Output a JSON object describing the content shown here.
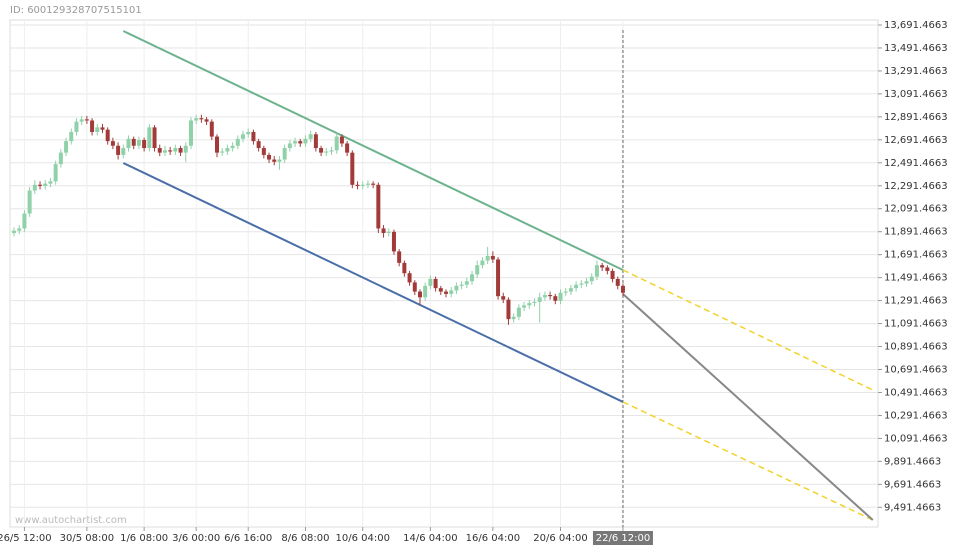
{
  "id_text": "ID: 600129328707515101",
  "watermark": "www.autochartist.com",
  "chart_data": {
    "type": "candlestick",
    "categories": [
      null,
      null,
      "26/5 12:00",
      null,
      null,
      null,
      null,
      null,
      null,
      null,
      null,
      null,
      null,
      null,
      "30/5 08:00",
      null,
      null,
      null,
      null,
      null,
      null,
      null,
      null,
      null,
      null,
      "1/6 08:00",
      null,
      null,
      null,
      null,
      null,
      null,
      null,
      null,
      null,
      "3/6 00:00",
      null,
      null,
      null,
      null,
      null,
      null,
      null,
      null,
      null,
      "6/6 16:00",
      null,
      null,
      null,
      null,
      null,
      null,
      null,
      null,
      null,
      null,
      "8/6 08:00",
      null,
      null,
      null,
      null,
      null,
      null,
      null,
      null,
      null,
      null,
      "10/6 04:00",
      null,
      null,
      null,
      null,
      null,
      null,
      null,
      null,
      null,
      null,
      null,
      null,
      "14/6 04:00",
      null,
      null,
      null,
      null,
      null,
      null,
      null,
      null,
      null,
      null,
      null,
      "16/6 04:00",
      null,
      null,
      null,
      null,
      null,
      null,
      null,
      null,
      null,
      null,
      null,
      null,
      "20/6 04:00",
      null,
      null,
      null,
      null,
      null,
      null,
      null,
      null,
      null,
      null,
      null,
      "22/6 12:00"
    ],
    "open": [
      11880,
      11900,
      11920,
      12050,
      12250,
      12300,
      12290,
      12310,
      12330,
      12480,
      12580,
      12680,
      12760,
      12850,
      12870,
      12860,
      12760,
      12800,
      12780,
      12680,
      12640,
      12560,
      12620,
      12700,
      12640,
      12690,
      12620,
      12800,
      12620,
      12580,
      12600,
      12590,
      12620,
      12580,
      12640,
      12860,
      12880,
      12870,
      12850,
      12720,
      12580,
      12590,
      12620,
      12640,
      12700,
      12740,
      12760,
      12680,
      12620,
      12560,
      12520,
      12500,
      12520,
      12620,
      12660,
      12680,
      12660,
      12700,
      12740,
      12620,
      12580,
      12590,
      12600,
      12720,
      12660,
      12580,
      12300,
      12290,
      12300,
      12310,
      12300,
      11920,
      11880,
      11890,
      11720,
      11620,
      11530,
      11450,
      11370,
      11320,
      11420,
      11480,
      11400,
      11370,
      11350,
      11380,
      11420,
      11430,
      11460,
      11520,
      11600,
      11640,
      11680,
      11650,
      11330,
      11300,
      11130,
      11150,
      11230,
      11250,
      11270,
      11280,
      11320,
      11340,
      11330,
      11290,
      11360,
      11370,
      11400,
      11430,
      11440,
      11460,
      11500,
      11600,
      11580,
      11550,
      11480,
      11420
    ],
    "high": [
      11930,
      11950,
      12080,
      12280,
      12340,
      12330,
      12340,
      12360,
      12510,
      12610,
      12710,
      12790,
      12880,
      12900,
      12900,
      12880,
      12830,
      12830,
      12800,
      12710,
      12670,
      12650,
      12730,
      12720,
      12720,
      12710,
      12830,
      12820,
      12650,
      12640,
      12630,
      12650,
      12640,
      12670,
      12890,
      12910,
      12910,
      12890,
      12870,
      12740,
      12620,
      12650,
      12670,
      12730,
      12770,
      12790,
      12780,
      12700,
      12640,
      12580,
      12550,
      12550,
      12650,
      12690,
      12710,
      12700,
      12730,
      12770,
      12760,
      12640,
      12620,
      12630,
      12750,
      12740,
      12680,
      12600,
      12330,
      12330,
      12340,
      12330,
      12320,
      11950,
      11920,
      11910,
      11740,
      11640,
      11550,
      11470,
      11390,
      11450,
      11510,
      11500,
      11420,
      11390,
      11410,
      11450,
      11460,
      11490,
      11550,
      11640,
      11670,
      11760,
      11720,
      11670,
      11360,
      11320,
      11180,
      11260,
      11280,
      11300,
      11310,
      11360,
      11370,
      11370,
      11350,
      11390,
      11400,
      11430,
      11460,
      11470,
      11490,
      11530,
      11640,
      11620,
      11600,
      11570,
      11500,
      11440
    ],
    "low": [
      11850,
      11870,
      11890,
      12020,
      12220,
      12260,
      12260,
      12280,
      12300,
      12450,
      12550,
      12650,
      12730,
      12820,
      12830,
      12730,
      12730,
      12750,
      12650,
      12610,
      12520,
      12530,
      12590,
      12610,
      12610,
      12590,
      12590,
      12590,
      12550,
      12550,
      12560,
      12560,
      12550,
      12500,
      12610,
      12830,
      12840,
      12820,
      12690,
      12540,
      12550,
      12560,
      12590,
      12610,
      12670,
      12710,
      12650,
      12590,
      12530,
      12490,
      12470,
      12430,
      12490,
      12590,
      12630,
      12630,
      12630,
      12670,
      12590,
      12550,
      12550,
      12560,
      12570,
      12630,
      12550,
      12270,
      12260,
      12260,
      12270,
      12270,
      11880,
      11840,
      11850,
      11690,
      11590,
      11500,
      11420,
      11340,
      11250,
      11290,
      11390,
      11370,
      11340,
      11320,
      11320,
      11350,
      11390,
      11400,
      11430,
      11490,
      11570,
      11610,
      11620,
      11300,
      11270,
      11080,
      11100,
      11120,
      11200,
      11220,
      11240,
      11100,
      11290,
      11300,
      11260,
      11260,
      11330,
      11340,
      11370,
      11400,
      11410,
      11430,
      11470,
      11550,
      11520,
      11450,
      11390,
      11330
    ],
    "close": [
      11900,
      11920,
      12050,
      12250,
      12300,
      12290,
      12310,
      12330,
      12480,
      12580,
      12680,
      12760,
      12850,
      12870,
      12860,
      12760,
      12800,
      12780,
      12680,
      12640,
      12560,
      12620,
      12700,
      12640,
      12690,
      12620,
      12800,
      12620,
      12580,
      12600,
      12590,
      12620,
      12580,
      12640,
      12860,
      12880,
      12870,
      12850,
      12720,
      12580,
      12590,
      12620,
      12640,
      12700,
      12740,
      12760,
      12680,
      12620,
      12560,
      12520,
      12500,
      12520,
      12620,
      12660,
      12680,
      12660,
      12700,
      12740,
      12620,
      12580,
      12590,
      12600,
      12720,
      12660,
      12580,
      12300,
      12290,
      12300,
      12310,
      12300,
      11920,
      11880,
      11890,
      11720,
      11620,
      11530,
      11450,
      11370,
      11320,
      11420,
      11480,
      11400,
      11370,
      11350,
      11380,
      11420,
      11430,
      11460,
      11520,
      11600,
      11640,
      11680,
      11650,
      11330,
      11300,
      11130,
      11150,
      11230,
      11250,
      11270,
      11280,
      11320,
      11340,
      11330,
      11290,
      11360,
      11370,
      11400,
      11430,
      11440,
      11460,
      11500,
      11600,
      11580,
      11550,
      11480,
      11420,
      11360
    ],
    "up_color": "#8fd1a8",
    "down_color": "#a33a3a",
    "xlim": [
      -0.77,
      166
    ],
    "ylim": [
      9320,
      13735
    ],
    "yticks": [
      {
        "value": 9491.4663,
        "label": "9,491.4663"
      },
      {
        "value": 9691.4663,
        "label": "9,691.4663"
      },
      {
        "value": 9891.4663,
        "label": "9,891.4663"
      },
      {
        "value": 10091.4663,
        "label": "10,091.4663"
      },
      {
        "value": 10291.4663,
        "label": "10,291.4663"
      },
      {
        "value": 10491.4663,
        "label": "10,491.4663"
      },
      {
        "value": 10691.4663,
        "label": "10,691.4663"
      },
      {
        "value": 10891.4663,
        "label": "10,891.4663"
      },
      {
        "value": 11091.4663,
        "label": "11,091.4663"
      },
      {
        "value": 11291.4663,
        "label": "11,291.4663"
      },
      {
        "value": 11491.4663,
        "label": "11,491.4663"
      },
      {
        "value": 11691.4663,
        "label": "11,691.4663"
      },
      {
        "value": 11891.4663,
        "label": "11,891.4663"
      },
      {
        "value": 12091.4663,
        "label": "12,091.4663"
      },
      {
        "value": 12291.4663,
        "label": "12,291.4663"
      },
      {
        "value": 12491.4663,
        "label": "12,491.4663"
      },
      {
        "value": 12691.4663,
        "label": "12,691.4663"
      },
      {
        "value": 12891.4663,
        "label": "12,891.4663"
      },
      {
        "value": 13091.4663,
        "label": "13,091.4663"
      },
      {
        "value": 13291.4663,
        "label": "13,291.4663"
      },
      {
        "value": 13491.4663,
        "label": "13,491.4663"
      },
      {
        "value": 13691.4663,
        "label": "13,691.4663"
      }
    ],
    "grid": true,
    "trend_lines": [
      {
        "color": "#6db38e",
        "dashed": false,
        "points": [
          [
            21,
            13639
          ],
          [
            117,
            11558
          ]
        ]
      },
      {
        "color": "#4a6fa8",
        "dashed": false,
        "points": [
          [
            21,
            12490
          ],
          [
            117,
            10409
          ]
        ]
      },
      {
        "color": "#f2d22a",
        "dashed": true,
        "points": [
          [
            117,
            11558
          ],
          [
            165,
            10513
          ]
        ]
      },
      {
        "color": "#f2d22a",
        "dashed": true,
        "points": [
          [
            117,
            10409
          ],
          [
            165,
            9381
          ]
        ]
      },
      {
        "color": "#888888",
        "dashed": false,
        "points": [
          [
            117,
            11349
          ],
          [
            165,
            9381
          ]
        ]
      }
    ]
  }
}
